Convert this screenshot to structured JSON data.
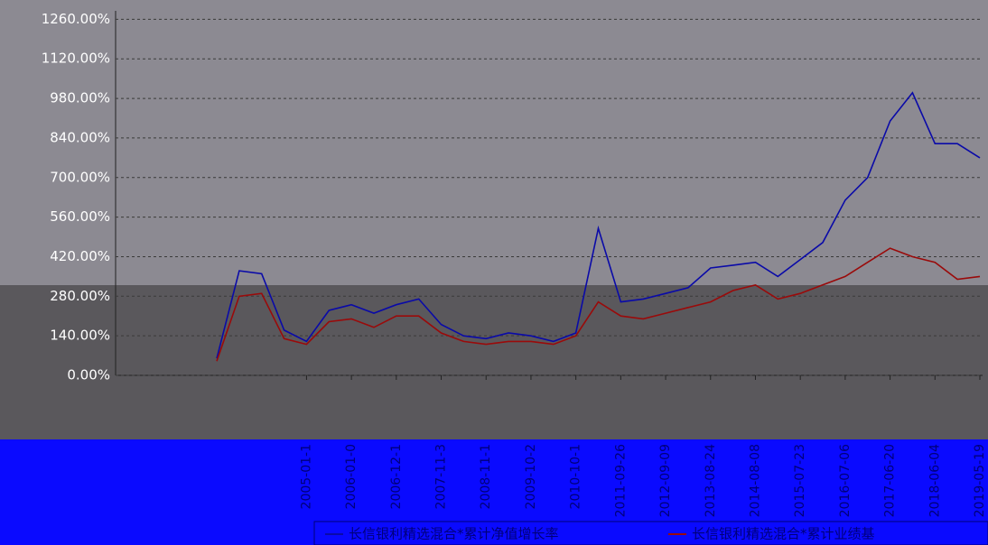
{
  "chart_data": {
    "type": "line",
    "categories": [
      null,
      null,
      null,
      null,
      "2005-01-1",
      null,
      "2006-01-0",
      null,
      "2006-12-1",
      null,
      "2007-11-3",
      null,
      "2008-11-1",
      null,
      "2009-10-2",
      null,
      "2010-10-1",
      null,
      "2011-09-26",
      null,
      "2012-09-09",
      null,
      "2013-08-24",
      null,
      "2014-08-08",
      null,
      "2015-07-23",
      null,
      "2016-07-06",
      null,
      "2017-06-20",
      null,
      "2018-06-04",
      null,
      "2019-05-19"
    ],
    "series": [
      {
        "name": "长信银利精选混合*累计净值增长率",
        "color": "#0a0aa8",
        "values": [
          60,
          370,
          360,
          160,
          120,
          230,
          250,
          220,
          250,
          270,
          180,
          140,
          130,
          150,
          140,
          120,
          150,
          520,
          260,
          270,
          290,
          310,
          380,
          390,
          400,
          350,
          410,
          470,
          620,
          700,
          900,
          1000,
          820,
          820,
          770
        ]
      },
      {
        "name": "长信银利精选混合*累计业绩基",
        "color": "#9a0a0a",
        "values": [
          50,
          280,
          290,
          130,
          110,
          190,
          200,
          170,
          210,
          210,
          150,
          120,
          110,
          120,
          120,
          110,
          140,
          260,
          210,
          200,
          220,
          240,
          260,
          300,
          320,
          270,
          290,
          320,
          350,
          400,
          450,
          420,
          400,
          340,
          350
        ]
      }
    ],
    "ylim": [
      0,
      1290
    ],
    "yticks": [
      {
        "value": 0,
        "label": "0.00%"
      },
      {
        "value": 140,
        "label": "140.00%"
      },
      {
        "value": 280,
        "label": "280.00%"
      },
      {
        "value": 420,
        "label": "420.00%"
      },
      {
        "value": 560,
        "label": "560.00%"
      },
      {
        "value": 700,
        "label": "700.00%"
      },
      {
        "value": 840,
        "label": "840.00%"
      },
      {
        "value": 980,
        "label": "980.00%"
      },
      {
        "value": 1120,
        "label": "1120.00%"
      },
      {
        "value": 1260,
        "label": "1260.00%"
      }
    ],
    "grid": true
  }
}
